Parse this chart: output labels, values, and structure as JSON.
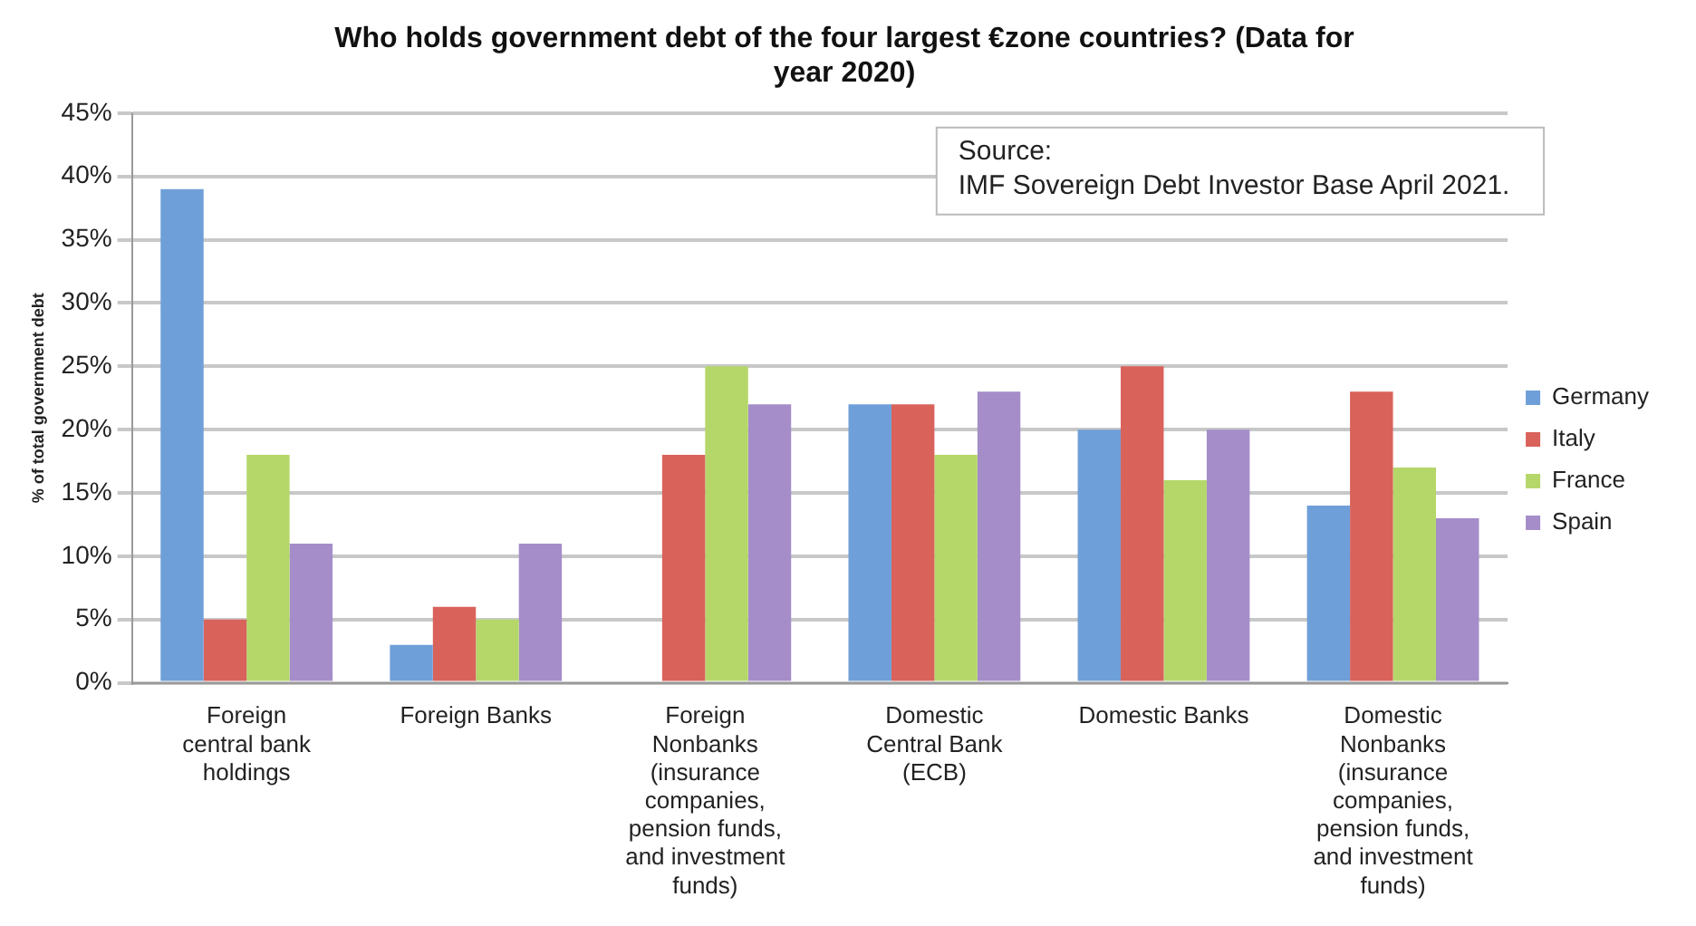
{
  "chart_data": {
    "type": "bar",
    "title": "Who holds government debt of the four largest €zone countries? (Data for year 2020)",
    "ylabel": "% of total government debt",
    "categories": [
      "Foreign central bank holdings",
      "Foreign Banks",
      "Foreign Nonbanks (insurance companies, pension funds, and investment funds)",
      "Domestic Central Bank (ECB)",
      "Domestic Banks",
      "Domestic Nonbanks (insurance companies, pension funds, and investment funds)"
    ],
    "series": [
      {
        "name": "Germany",
        "color": "#6f9fd8",
        "values": [
          39,
          3,
          null,
          22,
          20,
          14
        ]
      },
      {
        "name": "Italy",
        "color": "#d9625b",
        "values": [
          5,
          6,
          18,
          22,
          25,
          23
        ]
      },
      {
        "name": "France",
        "color": "#b5d76a",
        "values": [
          18,
          5,
          25,
          18,
          16,
          17
        ]
      },
      {
        "name": "Spain",
        "color": "#a58dc9",
        "values": [
          11,
          11,
          22,
          23,
          20,
          13
        ]
      }
    ],
    "ylim": [
      0,
      45
    ],
    "yticks": [
      {
        "value": 0,
        "label": "0%"
      },
      {
        "value": 5,
        "label": "5%"
      },
      {
        "value": 10,
        "label": "10%"
      },
      {
        "value": 15,
        "label": "15%"
      },
      {
        "value": 20,
        "label": "20%"
      },
      {
        "value": 25,
        "label": "25%"
      },
      {
        "value": 30,
        "label": "30%"
      },
      {
        "value": 35,
        "label": "35%"
      },
      {
        "value": 40,
        "label": "40%"
      },
      {
        "value": 45,
        "label": "45%"
      }
    ],
    "grid": "y",
    "legend": "right",
    "annotations": [
      "Source:\nIMF Sovereign Debt Investor Base April 2021."
    ]
  }
}
